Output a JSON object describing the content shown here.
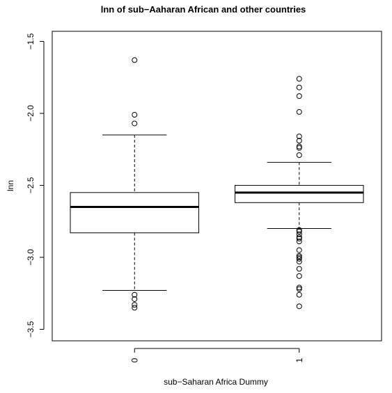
{
  "chart_data": {
    "type": "boxplot",
    "title": "lnn of sub−Aaharan African and other countries",
    "xlabel": "sub−Saharan Africa Dummy",
    "ylabel": "lnn",
    "ylim": [
      -3.58,
      -1.43
    ],
    "yticks": [
      -1.5,
      -2.0,
      -2.5,
      -3.0,
      -3.5
    ],
    "ytick_labels": [
      "−1.5",
      "−2.0",
      "−2.5",
      "−3.0",
      "−3.5"
    ],
    "categories": [
      "0",
      "1"
    ],
    "boxes": [
      {
        "category": "0",
        "whisker_low": -3.23,
        "q1": -2.83,
        "median": -2.65,
        "q3": -2.55,
        "whisker_high": -2.15,
        "outliers": [
          -1.63,
          -2.01,
          -2.07,
          -3.26,
          -3.29,
          -3.33,
          -3.35
        ]
      },
      {
        "category": "1",
        "whisker_low": -2.8,
        "q1": -2.62,
        "median": -2.55,
        "q3": -2.5,
        "whisker_high": -2.34,
        "outliers": [
          -1.76,
          -1.82,
          -1.88,
          -1.99,
          -2.16,
          -2.19,
          -2.23,
          -2.24,
          -2.29,
          -2.81,
          -2.82,
          -2.84,
          -2.86,
          -2.87,
          -2.89,
          -2.95,
          -2.99,
          -3.0,
          -3.01,
          -3.03,
          -3.08,
          -3.13,
          -3.21,
          -3.22,
          -3.26,
          -3.34
        ]
      }
    ],
    "grid": false,
    "legend": "none"
  }
}
